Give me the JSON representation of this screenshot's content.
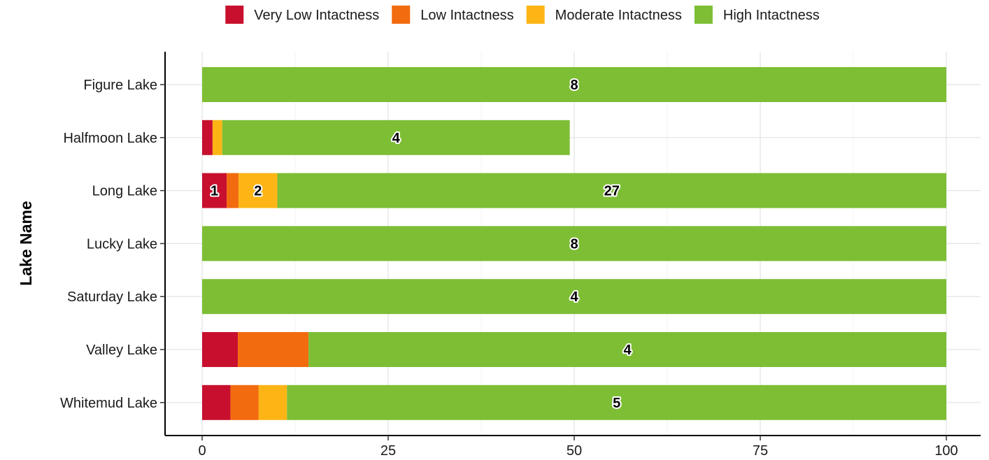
{
  "chart_data": {
    "type": "bar",
    "orientation": "horizontal",
    "stacked": true,
    "title": "",
    "xlabel": "",
    "ylabel": "Lake Name",
    "xlim": [
      0,
      100
    ],
    "x_ticks": [
      0,
      25,
      50,
      75,
      100
    ],
    "grid": true,
    "legend_position": "top",
    "categories": [
      "Figure Lake",
      "Halfmoon Lake",
      "Long Lake",
      "Lucky Lake",
      "Saturday Lake",
      "Valley Lake",
      "Whitemud Lake"
    ],
    "series": [
      {
        "name": "Very Low Intactness",
        "color": "#C8102E",
        "values": [
          0,
          1.4,
          3.3,
          0,
          0,
          4.8,
          3.8
        ],
        "labels": [
          "",
          "",
          "1",
          "",
          "",
          "",
          ""
        ]
      },
      {
        "name": "Low Intactness",
        "color": "#F26B0F",
        "values": [
          0,
          0,
          1.6,
          0,
          0,
          9.5,
          3.8
        ],
        "labels": [
          "",
          "",
          "",
          "",
          "",
          "",
          ""
        ]
      },
      {
        "name": "Moderate Intactness",
        "color": "#FDB515",
        "values": [
          0,
          1.3,
          5.2,
          0,
          0,
          0,
          3.8
        ],
        "labels": [
          "",
          "",
          "2",
          "",
          "",
          "",
          ""
        ]
      },
      {
        "name": "High Intactness",
        "color": "#7DBE35",
        "values": [
          100,
          46.7,
          89.9,
          100,
          100,
          85.7,
          88.6
        ],
        "labels": [
          "8",
          "4",
          "27",
          "8",
          "4",
          "4",
          "5"
        ]
      }
    ]
  }
}
